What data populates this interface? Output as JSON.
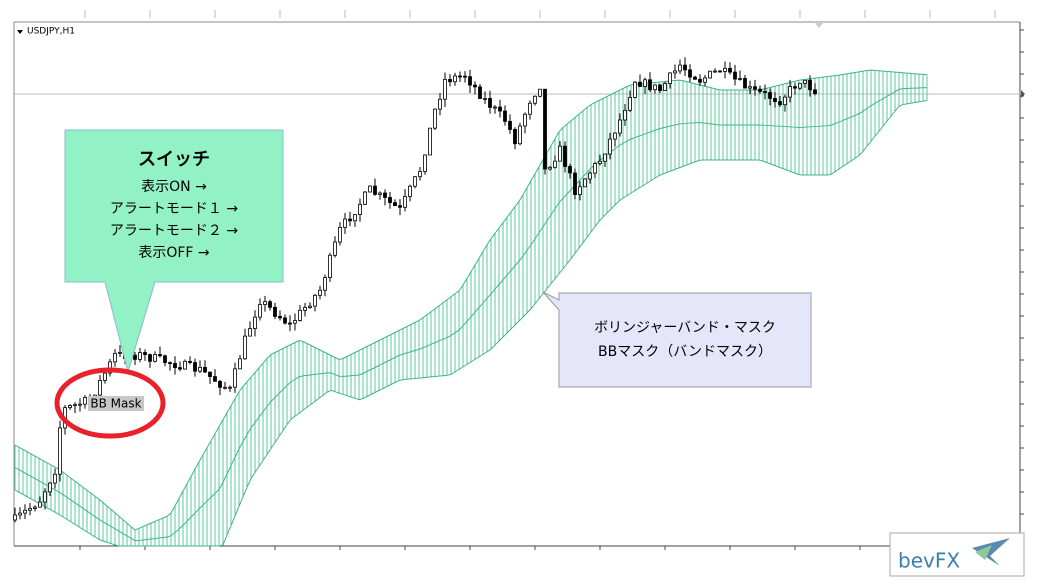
{
  "chart": {
    "symbol": "USDJPY,H1",
    "indicator_label": "BB Mask"
  },
  "callout_switch": {
    "title": "スイッチ",
    "lines": [
      "表示ON →",
      "アラートモード１ →",
      "アラートモード２ →",
      "表示OFF →"
    ]
  },
  "callout_mask": {
    "lines": [
      "ボリンジャーバンド・マスク",
      "BBマスク（バンドマスク）"
    ]
  },
  "logo": {
    "text": "bevFX"
  }
}
